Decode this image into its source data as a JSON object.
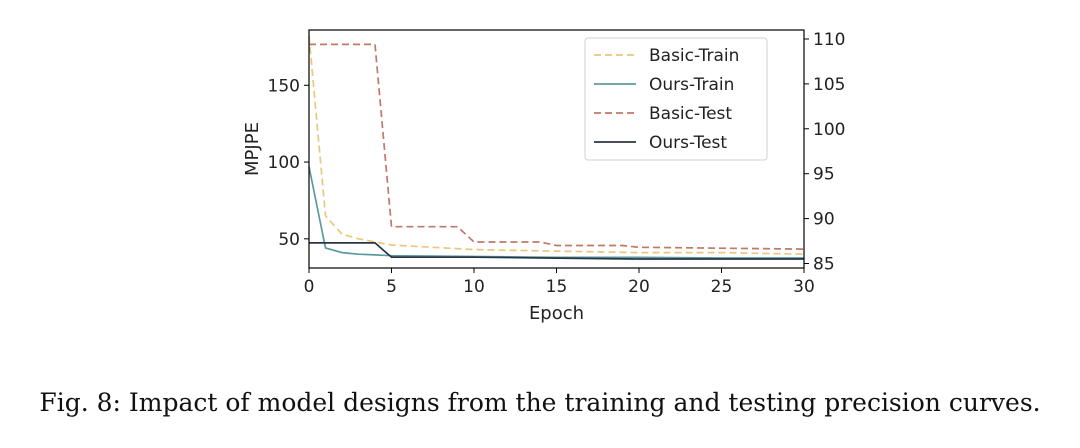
{
  "caption": "Fig. 8: Impact of model designs from the training and testing precision curves.",
  "chart_data": {
    "type": "line",
    "xlabel": "Epoch",
    "ylabel": "MPJPE",
    "xlim": [
      0,
      30
    ],
    "ylim_left": [
      31,
      186
    ],
    "ylim_right": [
      84.5,
      111
    ],
    "xticks": [
      0,
      5,
      10,
      15,
      20,
      25,
      30
    ],
    "yticks_left": [
      50,
      100,
      150
    ],
    "yticks_right": [
      85,
      90,
      95,
      100,
      105,
      110
    ],
    "grid": false,
    "legend_position": "top-right",
    "series": [
      {
        "name": "Basic-Train",
        "axis": "left",
        "color": "#e8c87d",
        "dashed": true,
        "x": [
          0,
          1,
          2,
          3,
          4,
          5,
          10,
          15,
          20,
          25,
          30
        ],
        "y": [
          182,
          65,
          53,
          50,
          48,
          46,
          43,
          42,
          41,
          41,
          40
        ]
      },
      {
        "name": "Ours-Train",
        "axis": "left",
        "color": "#5b9aa0",
        "dashed": false,
        "x": [
          0,
          1,
          2,
          3,
          4,
          5,
          10,
          15,
          20,
          25,
          30
        ],
        "y": [
          97,
          44,
          41,
          40,
          39.5,
          39,
          38.5,
          38,
          38,
          37.5,
          37.5
        ]
      },
      {
        "name": "Basic-Test",
        "axis": "right",
        "color": "#c0786a",
        "dashed": true,
        "x": [
          0,
          4,
          5,
          9,
          10,
          14,
          15,
          19,
          20,
          25,
          30
        ],
        "y": [
          109.4,
          109.4,
          89.1,
          89.1,
          87.4,
          87.4,
          87.0,
          87.0,
          86.8,
          86.7,
          86.6
        ]
      },
      {
        "name": "Ours-Test",
        "axis": "right",
        "color": "#2b3445",
        "dashed": false,
        "x": [
          0,
          4,
          5,
          10,
          15,
          20,
          25,
          30
        ],
        "y": [
          87.3,
          87.3,
          85.7,
          85.7,
          85.6,
          85.5,
          85.5,
          85.5
        ]
      }
    ]
  }
}
